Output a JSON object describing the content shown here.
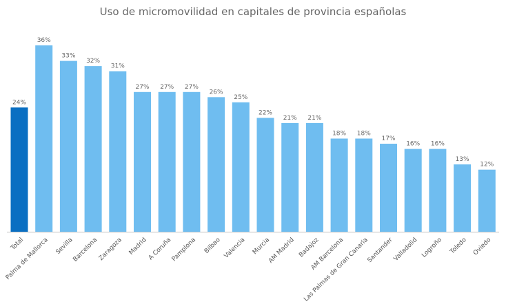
{
  "chart_data": {
    "type": "bar",
    "title": "Uso de micromovilidad en capitales de provincia españolas",
    "xlabel": "",
    "ylabel": "",
    "ylim": [
      0,
      36
    ],
    "grid": false,
    "legend": "none",
    "categories": [
      "Total",
      "Palma de Mallorca",
      "Sevilla",
      "Barcelona",
      "Zaragoza",
      "Madrid",
      "A Coruña",
      "Pamplona",
      "Bilbao",
      "Valencia",
      "Murcia",
      "AM Madrid",
      "Badajoz",
      "AM Barcelona",
      "Las Palmas de Gran Canaria",
      "Santander",
      "Valladolid",
      "Logroño",
      "Toledo",
      "Oviedo"
    ],
    "values": [
      24,
      36,
      33,
      32,
      31,
      27,
      27,
      27,
      26,
      25,
      22,
      21,
      21,
      18,
      18,
      17,
      16,
      16,
      13,
      12
    ],
    "value_labels": [
      "24%",
      "36%",
      "33%",
      "32%",
      "31%",
      "27%",
      "27%",
      "27%",
      "26%",
      "25%",
      "22%",
      "21%",
      "21%",
      "18%",
      "18%",
      "17%",
      "16%",
      "16%",
      "13%",
      "12%"
    ],
    "colors": {
      "highlight": "#0a6fc2",
      "bar": "#6fbdf0",
      "axis": "#bfbfbf"
    },
    "highlight_index": 0
  }
}
